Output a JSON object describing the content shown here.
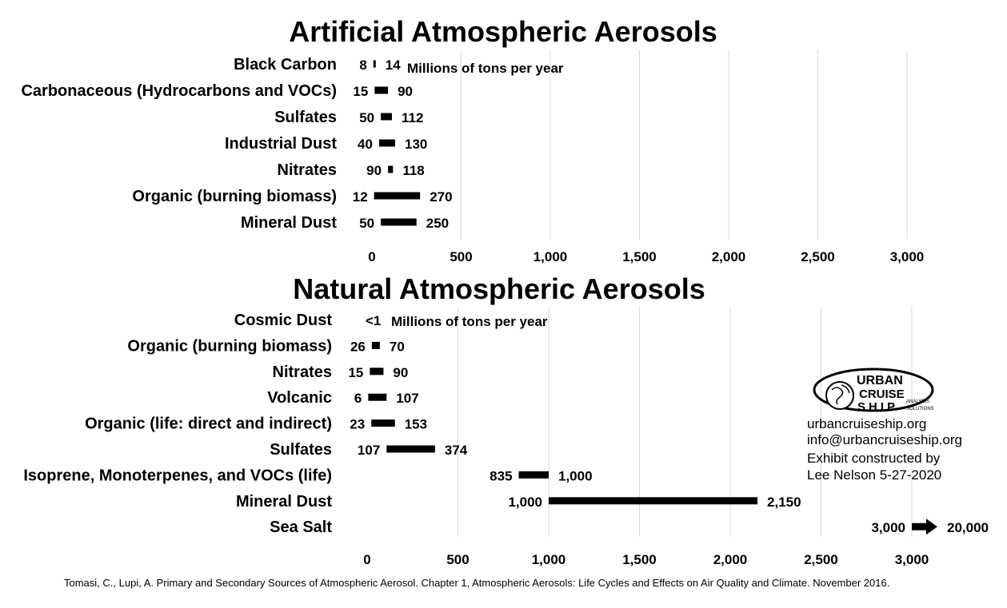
{
  "chart_data": [
    {
      "type": "bar",
      "orientation": "horizontal-range",
      "title": "Artificial Atmospheric Aerosols",
      "unit_label": "Millions of tons per year",
      "categories": [
        "Black Carbon",
        "Carbonaceous (Hydrocarbons and VOCs)",
        "Sulfates",
        "Industrial Dust",
        "Nitrates",
        "Organic (burning biomass)",
        "Mineral Dust"
      ],
      "low": [
        8,
        15,
        50,
        40,
        90,
        12,
        50
      ],
      "high": [
        14,
        90,
        112,
        130,
        118,
        270,
        250
      ],
      "low_labels": [
        "8",
        "15",
        "50",
        "40",
        "90",
        "12",
        "50"
      ],
      "high_labels": [
        "14",
        "90",
        "112",
        "130",
        "118",
        "270",
        "250"
      ],
      "xlim": [
        0,
        3000
      ],
      "xticks": [
        "0",
        "500",
        "1,000",
        "1,500",
        "2,000",
        "2,500",
        "3,000"
      ],
      "grid": true
    },
    {
      "type": "bar",
      "orientation": "horizontal-range",
      "title": "Natural Atmospheric Aerosols",
      "unit_label": "Millions of tons per year",
      "categories": [
        "Cosmic Dust",
        "Organic (burning biomass)",
        "Nitrates",
        "Volcanic",
        "Organic (life: direct and indirect)",
        "Sulfates",
        "Isoprene, Monoterpenes, and VOCs (life)",
        "Mineral Dust",
        "Sea Salt"
      ],
      "low": [
        null,
        26,
        15,
        6,
        23,
        107,
        835,
        1000,
        3000
      ],
      "high": [
        null,
        70,
        90,
        107,
        153,
        374,
        1000,
        2150,
        20000
      ],
      "low_labels": [
        "<1",
        "26",
        "15",
        "6",
        "23",
        "107",
        "835",
        "1,000",
        "3,000"
      ],
      "high_labels": [
        "",
        "70",
        "90",
        "107",
        "153",
        "374",
        "1,000",
        "2,150",
        "20,000"
      ],
      "xlim": [
        0,
        3000
      ],
      "xticks": [
        "0",
        "500",
        "1,000",
        "1,500",
        "2,000",
        "2,500",
        "3,000"
      ],
      "grid": true,
      "sea_salt_arrow": true
    }
  ],
  "info": {
    "logo_line1": "URBAN",
    "logo_line2": "CRUISE",
    "logo_line3": "SHIP",
    "logo_tag1": "ANALYSIS",
    "logo_tag2": "SOLUTIONS",
    "website": "urbancruiseship.org",
    "email": "info@urbancruiseship.org",
    "credit_line1": "Exhibit constructed by",
    "credit_line2": "Lee Nelson 5-27-2020"
  },
  "source": "Tomasi, C., Lupi, A. Primary and Secondary Sources of Atmospheric Aerosol. Chapter 1, Atmospheric Aerosols: Life Cycles and Effects on Air Quality and Climate. November 2016."
}
